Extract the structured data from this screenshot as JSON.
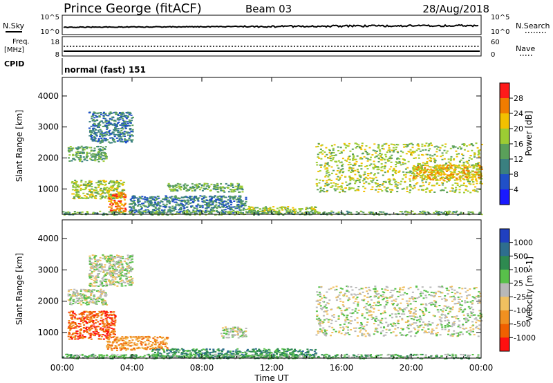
{
  "header": {
    "station": "Prince George (fitACF)",
    "beam": "Beam 03",
    "date": "28/Aug/2018"
  },
  "aux_panels": {
    "nsky_label": "N.Sky",
    "nsearch_label": "N.Search",
    "noise_left_ticks": [
      "10^5",
      "10^0"
    ],
    "noise_right_ticks": [
      "10^5",
      "10^0"
    ],
    "freq_label": "Freq.",
    "freq_unit": "[MHz]",
    "freq_ticks": [
      "18",
      "8"
    ],
    "nave_label": "Nave",
    "nave_ticks": [
      "60",
      "0"
    ],
    "cpid_label": "CPID",
    "cpid_value": "normal (fast) 151"
  },
  "chart_data": [
    {
      "type": "heatmap",
      "panel": "power",
      "ylabel": "Slant Range [km]",
      "xlabel": "",
      "x_ticks": [
        "00:00",
        "04:00",
        "08:00",
        "12:00",
        "16:00",
        "20:00",
        "00:00"
      ],
      "y_ticks": [
        "1000",
        "2000",
        "3000",
        "4000"
      ],
      "xlim": [
        0,
        24
      ],
      "ylim": [
        180,
        4600
      ],
      "colorbar": {
        "label": "Power [dB]",
        "ticks": [
          "4",
          "8",
          "12",
          "16",
          "20",
          "24",
          "28"
        ],
        "colors": [
          "#1a1aff",
          "#2050c8",
          "#3a8080",
          "#5aa05a",
          "#9ccc33",
          "#f2c000",
          "#f07c00",
          "#ff1a1a"
        ]
      },
      "regions": [
        {
          "t0": 0.3,
          "t1": 2.5,
          "r0": 1900,
          "r1": 2400,
          "level": 3
        },
        {
          "t0": 1.5,
          "t1": 4.0,
          "r0": 2500,
          "r1": 3500,
          "level": 2
        },
        {
          "t0": 0.5,
          "t1": 3.5,
          "r0": 700,
          "r1": 1300,
          "level": 4
        },
        {
          "t0": 2.6,
          "t1": 3.6,
          "r0": 250,
          "r1": 900,
          "level": 6
        },
        {
          "t0": 3.8,
          "t1": 10.5,
          "r0": 250,
          "r1": 800,
          "level": 2
        },
        {
          "t0": 6.0,
          "t1": 8.5,
          "r0": 950,
          "r1": 1200,
          "level": 3
        },
        {
          "t0": 8.6,
          "t1": 10.3,
          "r0": 900,
          "r1": 1200,
          "level": 3
        },
        {
          "t0": 10.5,
          "t1": 14.5,
          "r0": 250,
          "r1": 450,
          "level": 4
        },
        {
          "t0": 14.5,
          "t1": 24.0,
          "r0": 900,
          "r1": 2500,
          "level": 4
        },
        {
          "t0": 20.0,
          "t1": 24.0,
          "r0": 1300,
          "r1": 1800,
          "level": 5
        },
        {
          "t0": 0.0,
          "t1": 24.0,
          "r0": 180,
          "r1": 300,
          "level": 3
        }
      ]
    },
    {
      "type": "heatmap",
      "panel": "velocity",
      "ylabel": "Slant Range [km]",
      "xlabel": "Time UT",
      "x_ticks": [
        "00:00",
        "04:00",
        "08:00",
        "12:00",
        "16:00",
        "20:00",
        "00:00"
      ],
      "y_ticks": [
        "1000",
        "2000",
        "3000",
        "4000"
      ],
      "xlim": [
        0,
        24
      ],
      "ylim": [
        180,
        4600
      ],
      "colorbar": {
        "label": "Velocity [m s-1]",
        "ticks": [
          "1000",
          "500",
          "100",
          "25",
          "-25",
          "-100",
          "-500",
          "-1000"
        ],
        "colors": [
          "#2040c0",
          "#2e6e8e",
          "#2e8a50",
          "#58c04a",
          "#b8b8b8",
          "#f0c060",
          "#f09020",
          "#f06000",
          "#ff1010"
        ]
      },
      "regions": [
        {
          "t0": 0.3,
          "t1": 2.5,
          "r0": 1900,
          "r1": 2400,
          "level": 4
        },
        {
          "t0": 1.5,
          "t1": 4.0,
          "r0": 2500,
          "r1": 3500,
          "level": 4
        },
        {
          "t0": 0.3,
          "t1": 3.0,
          "r0": 800,
          "r1": 1700,
          "level": 7
        },
        {
          "t0": 2.5,
          "t1": 6.0,
          "r0": 450,
          "r1": 900,
          "level": 6
        },
        {
          "t0": 5.0,
          "t1": 14.5,
          "r0": 200,
          "r1": 500,
          "level": 2
        },
        {
          "t0": 0.0,
          "t1": 24.0,
          "r0": 180,
          "r1": 320,
          "level": 3
        },
        {
          "t0": 14.5,
          "t1": 24.0,
          "r0": 900,
          "r1": 2500,
          "level": 4
        },
        {
          "t0": 9.0,
          "t1": 10.5,
          "r0": 850,
          "r1": 1200,
          "level": 4
        }
      ]
    }
  ]
}
